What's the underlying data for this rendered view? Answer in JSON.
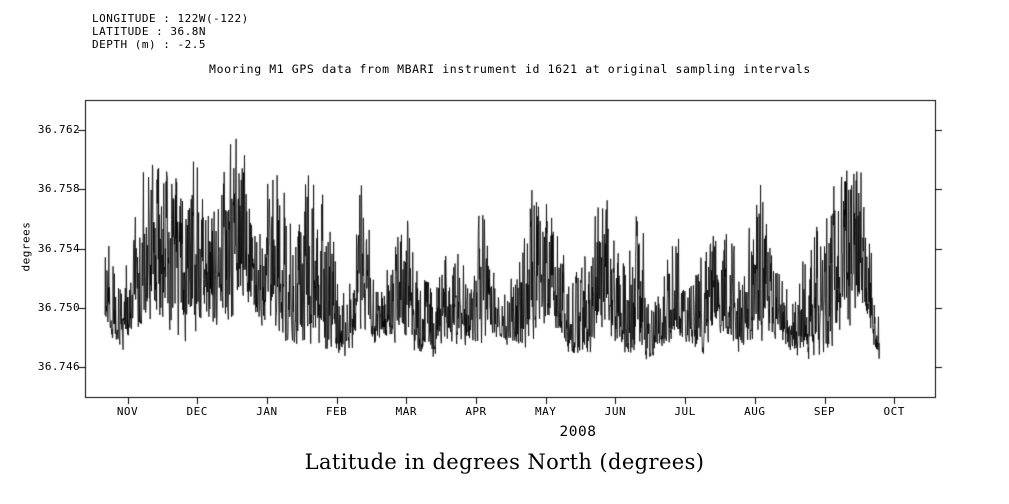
{
  "header": {
    "lines": [
      "LONGITUDE : 122W(-122)",
      "LATITUDE : 36.8N",
      "DEPTH (m) : -2.5"
    ]
  },
  "caption": "Latitude in degrees North (degrees)",
  "chart_data": {
    "type": "line",
    "title": "Mooring M1 GPS data from MBARI instrument id 1621 at original sampling intervals",
    "ylabel": "degrees",
    "xlabel_year": "2008",
    "months": [
      "NOV",
      "DEC",
      "JAN",
      "FEB",
      "MAR",
      "APR",
      "MAY",
      "JUN",
      "JUL",
      "AUG",
      "SEP",
      "OCT"
    ],
    "ytick_labels": [
      "36.746",
      "36.750",
      "36.754",
      "36.758",
      "36.762"
    ],
    "ytick_values": [
      36.746,
      36.75,
      36.754,
      36.758,
      36.762
    ],
    "ylim": [
      36.744,
      36.764
    ],
    "x_data_range": [
      0.0235,
      0.935
    ],
    "line_color": "#000000",
    "noise_seed": 1621,
    "samples": 2400,
    "series_envelope": {
      "upper": [
        36.757,
        36.752,
        36.76,
        36.762,
        36.76,
        36.762,
        36.757,
        36.761,
        36.7635,
        36.757,
        36.762,
        36.756,
        36.762,
        36.759,
        36.751,
        36.761,
        36.751,
        36.757,
        36.756,
        36.752,
        36.757,
        36.753,
        36.758,
        36.751,
        36.754,
        36.76,
        36.759,
        36.753,
        36.757,
        36.759,
        36.754,
        36.758,
        36.751,
        36.757,
        36.753,
        36.756,
        36.758,
        36.753,
        36.76,
        36.754,
        36.751,
        36.756,
        36.758,
        36.762,
        36.761,
        36.749
      ],
      "lower": [
        36.749,
        36.747,
        36.748,
        36.749,
        36.748,
        36.7475,
        36.749,
        36.748,
        36.75,
        36.749,
        36.748,
        36.7475,
        36.747,
        36.7465,
        36.747,
        36.748,
        36.7475,
        36.748,
        36.747,
        36.7465,
        36.748,
        36.747,
        36.7475,
        36.748,
        36.747,
        36.748,
        36.7485,
        36.747,
        36.7465,
        36.748,
        36.747,
        36.746,
        36.747,
        36.748,
        36.7475,
        36.747,
        36.748,
        36.747,
        36.7475,
        36.748,
        36.747,
        36.7465,
        36.747,
        36.748,
        36.749,
        36.7465
      ]
    }
  }
}
